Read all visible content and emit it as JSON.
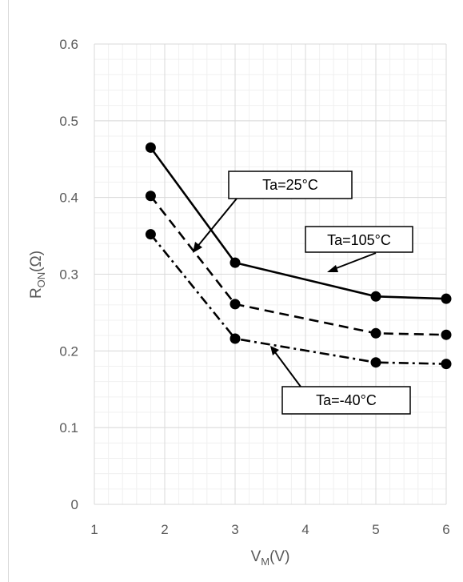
{
  "chart_data": {
    "type": "line",
    "xlim": [
      1,
      6
    ],
    "ylim": [
      0,
      0.6
    ],
    "x_ticks": [
      "1",
      "2",
      "3",
      "4",
      "5",
      "6"
    ],
    "y_ticks": [
      "0",
      "0.1",
      "0.2",
      "0.3",
      "0.4",
      "0.5",
      "0.6"
    ],
    "grid": "on (major and minor)",
    "legend": "none (callout annotations)",
    "series": [
      {
        "name": "Ta=105°C",
        "style": "solid",
        "x": [
          1.8,
          3,
          5,
          6
        ],
        "y": [
          0.465,
          0.315,
          0.271,
          0.268
        ]
      },
      {
        "name": "Ta=25°C",
        "style": "dashed",
        "x": [
          1.8,
          3,
          5,
          6
        ],
        "y": [
          0.402,
          0.261,
          0.223,
          0.221
        ]
      },
      {
        "name": "Ta=-40°C",
        "style": "dash-dot",
        "x": [
          1.8,
          3,
          5,
          6
        ],
        "y": [
          0.352,
          0.216,
          0.185,
          0.183
        ]
      }
    ],
    "annotations": [
      "Ta=25°C",
      "Ta=105°C",
      "Ta=-40°C"
    ],
    "xlabel": {
      "main": "V",
      "sub": "M",
      "unit": "(V)"
    },
    "ylabel": {
      "main": "R",
      "sub": "ON",
      "unit": "(Ω)"
    }
  }
}
